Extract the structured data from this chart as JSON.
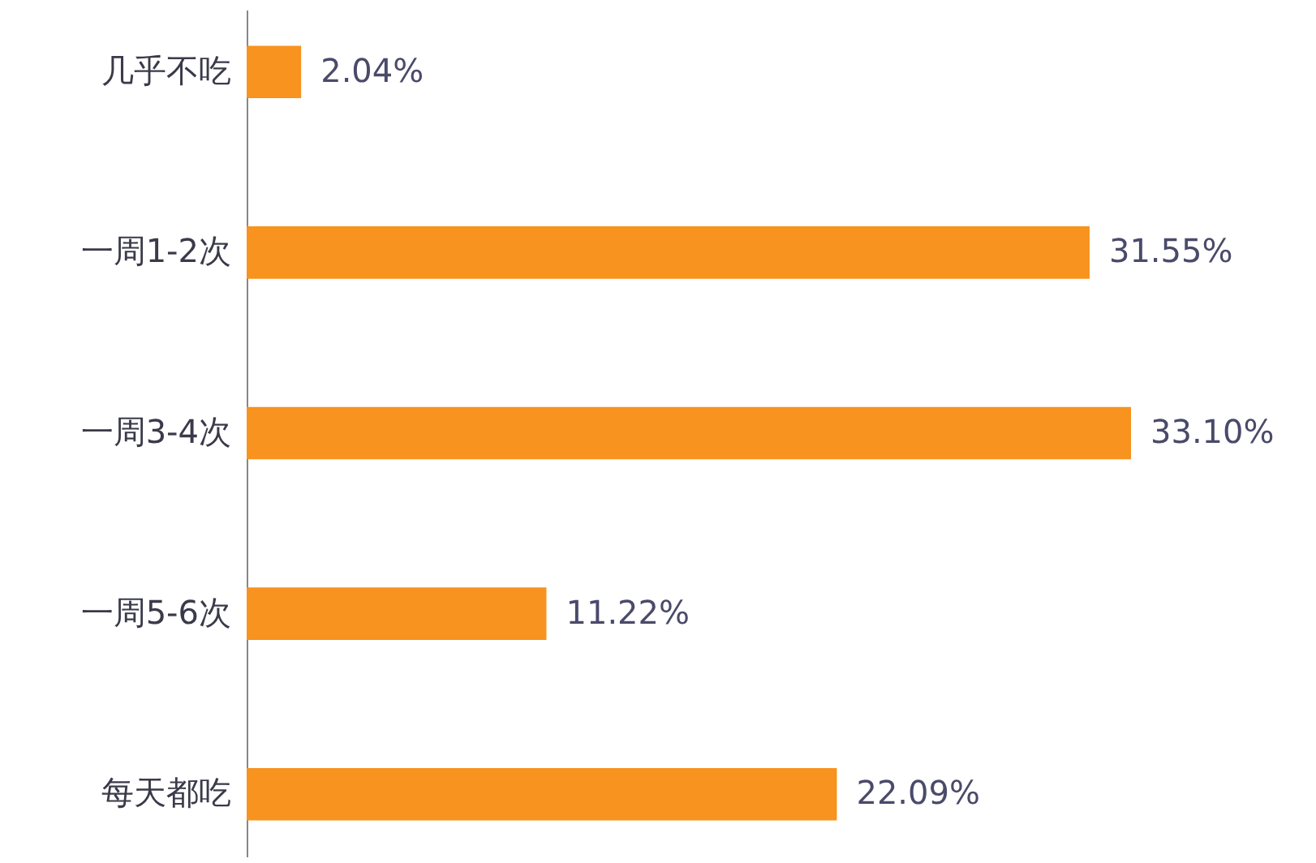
{
  "chart_data": {
    "type": "bar",
    "orientation": "horizontal",
    "categories": [
      "几乎不吃",
      "一周1-2次",
      "一周3-4次",
      "一周5-6次",
      "每天都吃"
    ],
    "values": [
      2.04,
      31.55,
      33.1,
      11.22,
      22.09
    ],
    "value_labels": [
      "2.04%",
      "31.55%",
      "33.10%",
      "11.22%",
      "22.09%"
    ],
    "color": "#f7931e"
  }
}
